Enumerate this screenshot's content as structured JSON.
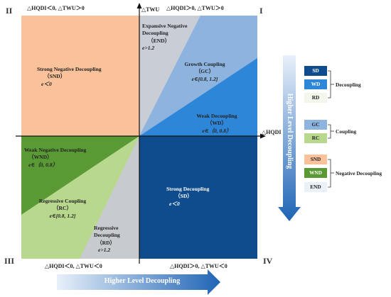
{
  "quadrants": {
    "I": "I",
    "II": "II",
    "III": "III",
    "IV": "IV"
  },
  "corners": {
    "top_left": "△HQDI＜0, △TWU＞0",
    "top_right": "△HQDI＞0, △TWU＞0",
    "bottom_left": "△HQDI＜0, △TWU＜0",
    "bottom_right": "△HQDI＞0, △TWU＜0"
  },
  "axes": {
    "y_label": "△TWU",
    "x_label": "△HQDI"
  },
  "regions": {
    "end": {
      "name": "Expansive Negative",
      "name2": "Decoupling",
      "abbr": "（END）",
      "cond": "e>1.2"
    },
    "snd": {
      "name": "Strong Negative Decoupling",
      "abbr": "（SND）",
      "cond": "e＜0"
    },
    "gc": {
      "name": "Growth Coupling",
      "abbr": "（GC）",
      "cond": "e∈[0.8, 1.2]"
    },
    "wd": {
      "name": "Weak Decoupling",
      "abbr": "（WD）",
      "cond": "e∈（0, 0.8）"
    },
    "wnd": {
      "name": "Weak Negative Decoupling",
      "abbr": "（WND）",
      "cond": "e∈（0, 0.8）"
    },
    "rc": {
      "name": "Regressive Coupling",
      "abbr": "（RC）",
      "cond": "e∈[0.8, 1.2]"
    },
    "rd": {
      "name": "Regressive",
      "name2": "Decoupling",
      "abbr": "（RD）",
      "cond": "e>1.2"
    },
    "sd": {
      "name": "Strong Decoupling",
      "abbr": "（SD）",
      "cond": "e＜0"
    }
  },
  "arrows": {
    "horizontal": "Higher Level Decoupling",
    "vertical": "Higher Level Decoupling"
  },
  "legend": {
    "groups": [
      {
        "label": "Decoupling",
        "items": [
          "SD",
          "WD",
          "RD"
        ]
      },
      {
        "label": "Coupling",
        "items": [
          "GC",
          "RC"
        ]
      },
      {
        "label": "Negative Decoupling",
        "items": [
          "SND",
          "WND",
          "END"
        ]
      }
    ]
  },
  "colors": {
    "snd": "#F9C29A",
    "end": "#C8CDD6",
    "gc": "#8DB3DF",
    "wd": "#2E86D9",
    "wnd": "#5A9A35",
    "rc": "#B8D88E",
    "rd": "#C7CBCF",
    "sd": "#0F4C8E",
    "arrow_start": "#E6EFFA",
    "arrow_end": "#1F64B5"
  }
}
